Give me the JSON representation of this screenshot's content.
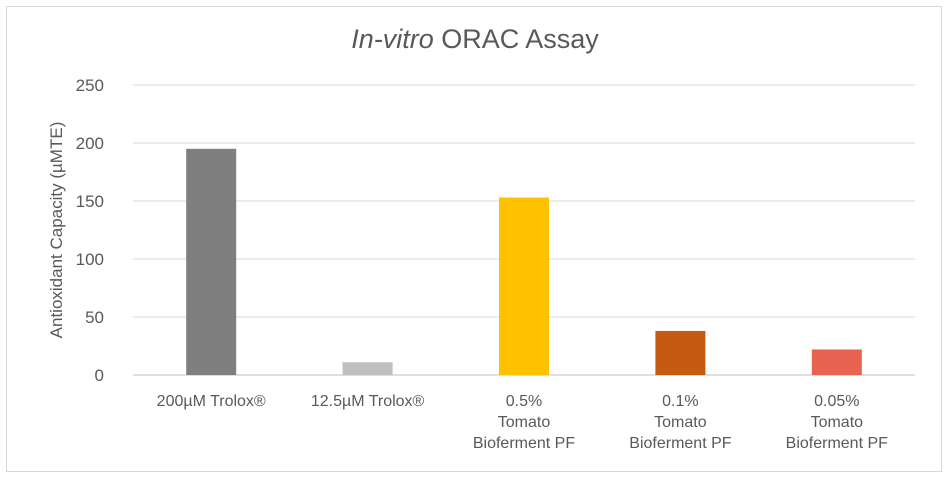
{
  "chart_data": {
    "type": "bar",
    "title_italic": "In-vitro",
    "title_rest": " ORAC Assay",
    "xlabel": "",
    "ylabel": "Antioxidant Capacity (µMTE)",
    "ylim": [
      0,
      250
    ],
    "yticks": [
      0,
      50,
      100,
      150,
      200,
      250
    ],
    "grid": true,
    "legend": "none",
    "categories": [
      [
        "200µM Trolox®"
      ],
      [
        "12.5µM Trolox®"
      ],
      [
        "0.5%",
        "Tomato",
        "Bioferment PF"
      ],
      [
        "0.1%",
        "Tomato",
        "Bioferment PF"
      ],
      [
        "0.05%",
        "Tomato",
        "Bioferment PF"
      ]
    ],
    "values": [
      195,
      11,
      153,
      38,
      22
    ],
    "colors": [
      "#7f7f7f",
      "#bfbfbf",
      "#ffc000",
      "#c55a11",
      "#e8634f"
    ]
  }
}
